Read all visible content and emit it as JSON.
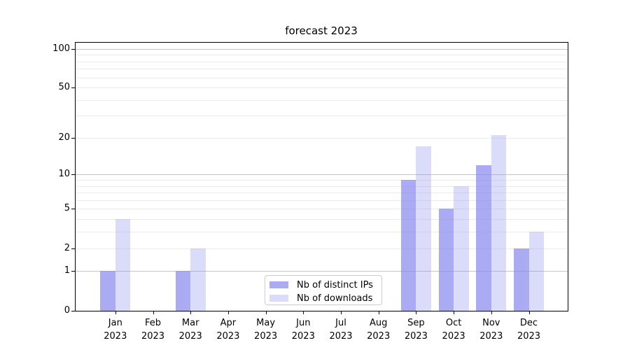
{
  "title": "forecast 2023",
  "chart_data": {
    "type": "bar",
    "title": "forecast 2023",
    "categories": [
      "Jan",
      "Feb",
      "Mar",
      "Apr",
      "May",
      "Jun",
      "Jul",
      "Aug",
      "Sep",
      "Oct",
      "Nov",
      "Dec"
    ],
    "category_year": "2023",
    "series": [
      {
        "name": "Nb of distinct IPs",
        "color": "rgba(136,136,238,0.7)",
        "values": [
          1,
          0,
          1,
          0,
          0,
          0,
          0,
          0,
          9,
          5,
          12,
          2
        ]
      },
      {
        "name": "Nb of downloads",
        "color": "rgba(136,136,238,0.3)",
        "values": [
          4,
          0,
          2,
          0,
          0,
          0,
          0,
          0,
          17,
          8,
          21,
          3
        ]
      }
    ],
    "xlabel": "",
    "ylabel": "",
    "yscale": "log1p",
    "ylim": [
      0,
      113
    ],
    "yticks": [
      0,
      1,
      2,
      5,
      10,
      20,
      50,
      100
    ],
    "major_gridlines": [
      1,
      10,
      100
    ],
    "minor_gridlines": [
      2,
      3,
      4,
      5,
      6,
      7,
      8,
      9,
      20,
      30,
      40,
      50,
      60,
      70,
      80,
      90
    ],
    "grid": "on",
    "legend_position": "lower center"
  },
  "colors": {
    "axis": "#000000",
    "grid_major": "#c6c6c6",
    "grid_minor": "#ececec",
    "legend_border": "#cccccc",
    "background": "#ffffff"
  }
}
